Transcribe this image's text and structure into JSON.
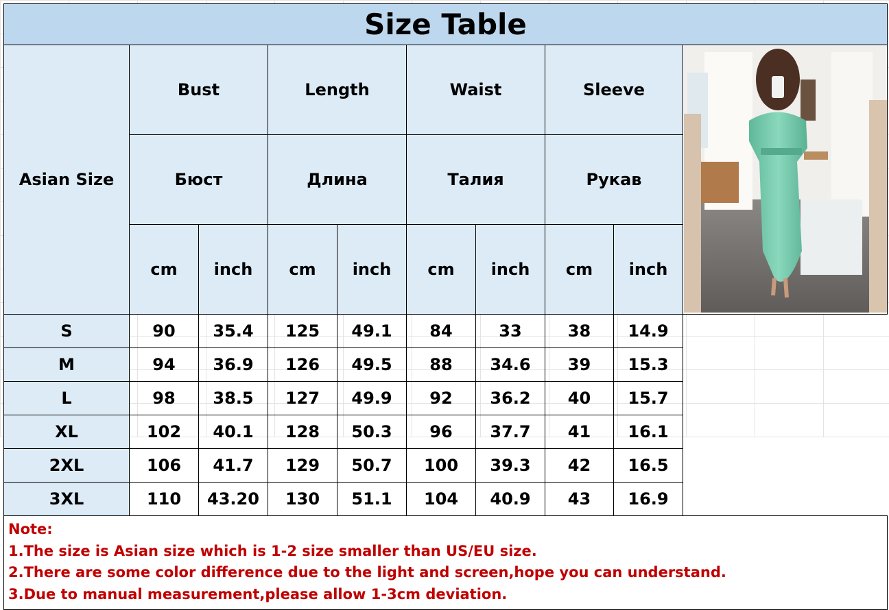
{
  "title": "Size Table",
  "headers": {
    "size_label": "Asian Size",
    "groups": [
      {
        "en": "Bust",
        "ru": "Бюст"
      },
      {
        "en": "Length",
        "ru": "Длина"
      },
      {
        "en": "Waist",
        "ru": "Талия"
      },
      {
        "en": "Sleeve",
        "ru": "Рукав"
      }
    ],
    "units": [
      "cm",
      "inch"
    ]
  },
  "rows": [
    {
      "size": "S",
      "values": [
        "90",
        "35.4",
        "125",
        "49.1",
        "84",
        "33",
        "38",
        "14.9"
      ]
    },
    {
      "size": "M",
      "values": [
        "94",
        "36.9",
        "126",
        "49.5",
        "88",
        "34.6",
        "39",
        "15.3"
      ]
    },
    {
      "size": "L",
      "values": [
        "98",
        "38.5",
        "127",
        "49.9",
        "92",
        "36.2",
        "40",
        "15.7"
      ]
    },
    {
      "size": "XL",
      "values": [
        "102",
        "40.1",
        "128",
        "50.3",
        "96",
        "37.7",
        "41",
        "16.1"
      ]
    },
    {
      "size": "2XL",
      "values": [
        "106",
        "41.7",
        "129",
        "50.7",
        "100",
        "39.3",
        "42",
        "16.5"
      ]
    },
    {
      "size": "3XL",
      "values": [
        "110",
        "43.20",
        "130",
        "51.1",
        "104",
        "40.9",
        "43",
        "16.9"
      ]
    }
  ],
  "notes": [
    "Note:",
    "1.The size is Asian size which is 1-2 size smaller than US/EU size.",
    "2.There are some color difference due to the light and screen,hope you can understand.",
    "3.Due to manual measurement,please allow 1-3cm deviation."
  ],
  "colors": {
    "title_bg": "#bdd7ee",
    "header_bg": "#ddebf7",
    "note_text": "#c00000",
    "dress": "#6cc4a6"
  }
}
